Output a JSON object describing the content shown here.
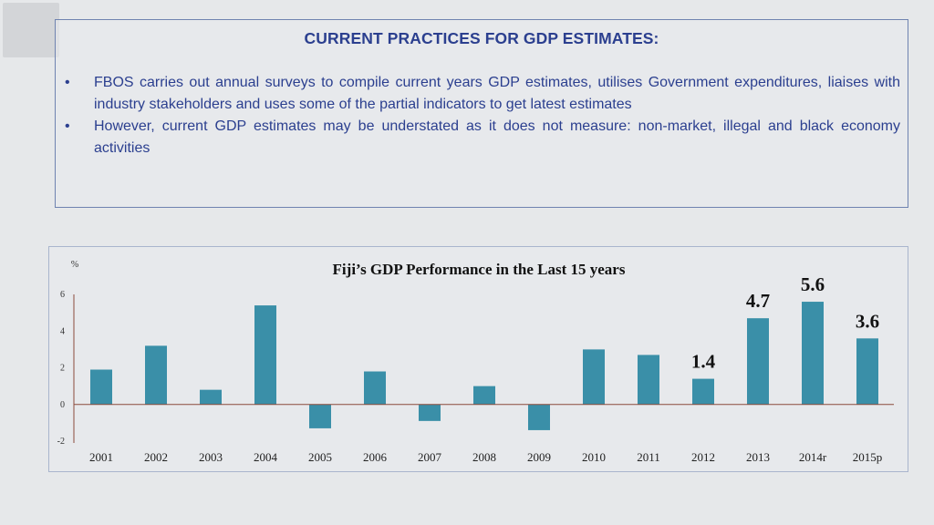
{
  "header": {
    "title": "CURRENT PRACTICES FOR GDP ESTIMATES:",
    "bullets": [
      "FBOS carries out annual surveys to compile current years GDP estimates, utilises Government  expenditures, liaises with industry stakeholders and uses some of the partial indicators to get latest estimates",
      "However, current GDP estimates may be understated as it does not measure: non-market, illegal and black economy activities"
    ]
  },
  "colors": {
    "bar": "#3a8fa8",
    "title_text": "#2b3f8f",
    "axis": "#8b4b3b"
  },
  "chart_data": {
    "type": "bar",
    "title": "Fiji’s GDP Performance in the Last 15 years",
    "ylabel": "%",
    "xlabel": "",
    "ylim": [
      -2,
      6
    ],
    "yticks": [
      6,
      4,
      2,
      0,
      -2
    ],
    "categories": [
      "2001",
      "2002",
      "2003",
      "2004",
      "2005",
      "2006",
      "2007",
      "2008",
      "2009",
      "2010",
      "2011",
      "2012",
      "2013",
      "2014r",
      "2015p"
    ],
    "values": [
      1.9,
      3.2,
      0.8,
      5.4,
      -1.3,
      1.8,
      -0.9,
      1.0,
      -1.4,
      3.0,
      2.7,
      1.4,
      4.7,
      5.6,
      3.6
    ],
    "data_labels": [
      "",
      "",
      "",
      "",
      "",
      "",
      "",
      "",
      "",
      "",
      "",
      "1.4",
      "4.7",
      "5.6",
      "3.6"
    ],
    "legend": "none",
    "grid": false
  }
}
